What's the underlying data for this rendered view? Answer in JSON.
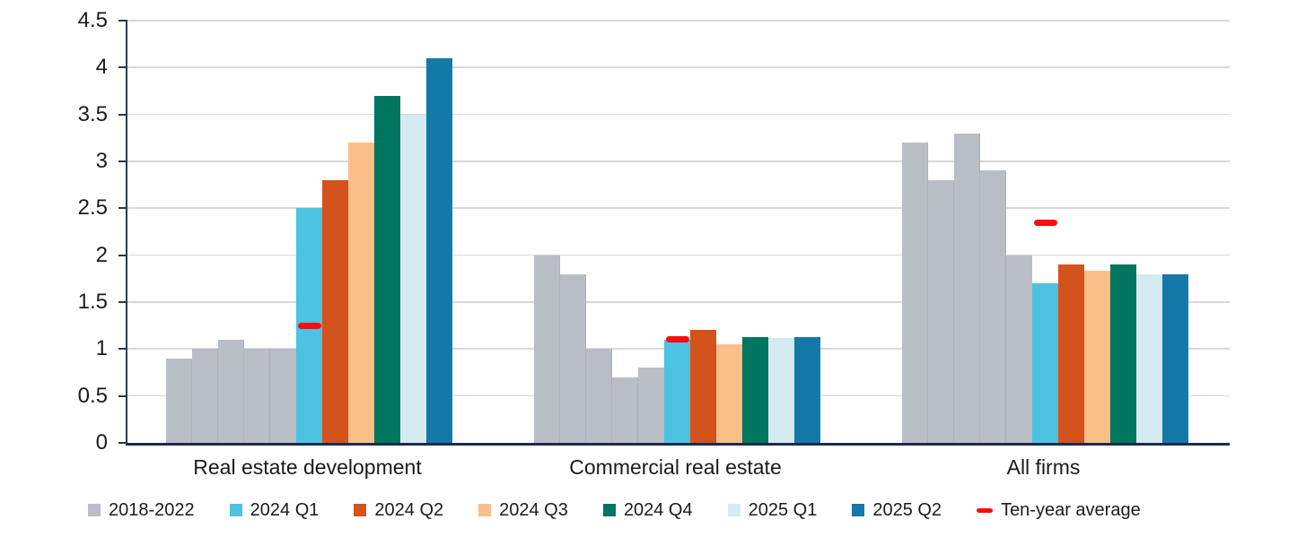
{
  "chart_data": {
    "type": "bar",
    "title": "",
    "xlabel": "",
    "ylabel": "",
    "ylim": [
      0,
      4.5
    ],
    "yticks": [
      0,
      0.5,
      1,
      1.5,
      2,
      2.5,
      3,
      3.5,
      4,
      4.5
    ],
    "ytick_labels": [
      "0",
      "0.5",
      "1",
      "1.5",
      "2",
      "2.5",
      "3",
      "3.5",
      "4",
      "4.5"
    ],
    "grid": "horizontal",
    "legend_position": "bottom",
    "categories": [
      "Real estate development",
      "Commercial real estate",
      "All firms"
    ],
    "series": [
      {
        "name": "2018-2022",
        "marker": "square",
        "color": "#b9bdc6",
        "note": "five adjacent yearly bars per category",
        "values": [
          [
            0.9,
            1.0,
            1.1,
            1.0,
            1.0
          ],
          [
            2.0,
            1.8,
            1.0,
            0.7,
            0.8
          ],
          [
            3.2,
            2.8,
            3.3,
            2.9,
            2.0
          ]
        ]
      },
      {
        "name": "2024 Q1",
        "marker": "square",
        "color": "#4ec2e2",
        "values": [
          2.5,
          1.1,
          1.7
        ]
      },
      {
        "name": "2024 Q2",
        "marker": "square",
        "color": "#d4521c",
        "values": [
          2.8,
          1.2,
          1.9
        ]
      },
      {
        "name": "2024 Q3",
        "marker": "square",
        "color": "#fbc089",
        "values": [
          3.2,
          1.05,
          1.83
        ]
      },
      {
        "name": "2024 Q4",
        "marker": "square",
        "color": "#00755f",
        "values": [
          3.7,
          1.13,
          1.9
        ]
      },
      {
        "name": "2025 Q1",
        "marker": "square",
        "color": "#d3ebf1",
        "values": [
          3.5,
          1.12,
          1.8
        ]
      },
      {
        "name": "2025 Q2",
        "marker": "square",
        "color": "#1379a9",
        "values": [
          4.1,
          1.13,
          1.8
        ]
      },
      {
        "name": "Ten-year average",
        "marker": "dash",
        "color": "#fa0d0e",
        "values": [
          1.25,
          1.1,
          2.35
        ]
      }
    ]
  },
  "axis": {
    "line_color": "#1d2b4c",
    "grid_color": "#d8d8d8",
    "text_color": "#1a1b1f"
  }
}
